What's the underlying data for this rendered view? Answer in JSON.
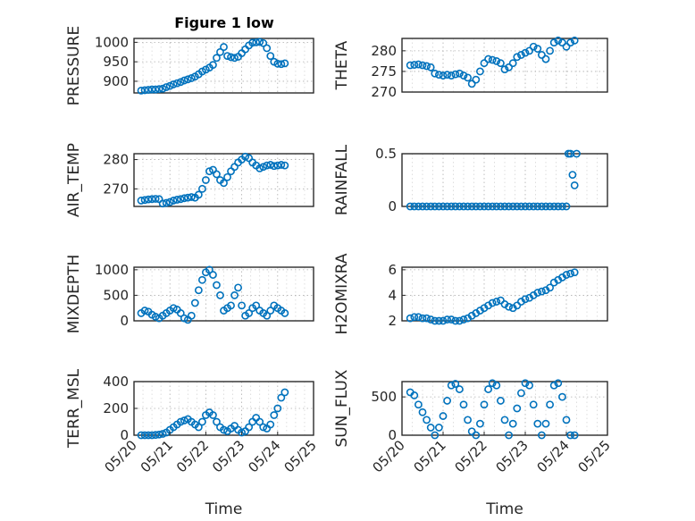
{
  "figure": {
    "title": "Figure 1 low"
  },
  "colors": {
    "marker": "#0072BD",
    "axes": "#262626"
  },
  "chart_data": [
    {
      "type": "scatter",
      "id": "pressure",
      "ylabel": "PRESSURE",
      "title": "Figure 1 low",
      "xlim": [
        0,
        5
      ],
      "ylim": [
        870,
        1010
      ],
      "yticks": [
        900,
        950,
        1000
      ],
      "x": [
        0.2,
        0.3,
        0.4,
        0.5,
        0.6,
        0.7,
        0.8,
        0.9,
        1.0,
        1.1,
        1.2,
        1.3,
        1.4,
        1.5,
        1.6,
        1.7,
        1.8,
        1.9,
        2.0,
        2.1,
        2.2,
        2.3,
        2.4,
        2.5,
        2.6,
        2.7,
        2.8,
        2.9,
        3.0,
        3.1,
        3.2,
        3.3,
        3.4,
        3.5,
        3.6,
        3.7,
        3.8,
        3.9,
        4.0,
        4.1,
        4.2
      ],
      "y": [
        876,
        877,
        878,
        879,
        879,
        880,
        881,
        885,
        888,
        892,
        895,
        898,
        902,
        905,
        908,
        912,
        918,
        925,
        930,
        935,
        942,
        960,
        975,
        988,
        965,
        962,
        960,
        963,
        972,
        982,
        992,
        999,
        1000,
        1001,
        998,
        985,
        965,
        950,
        945,
        944,
        946
      ]
    },
    {
      "type": "scatter",
      "id": "theta",
      "ylabel": "THETA",
      "xlim": [
        0,
        5
      ],
      "ylim": [
        270,
        283
      ],
      "yticks": [
        270,
        275,
        280
      ],
      "x": [
        0.2,
        0.3,
        0.4,
        0.5,
        0.6,
        0.7,
        0.8,
        0.9,
        1.0,
        1.1,
        1.2,
        1.3,
        1.4,
        1.5,
        1.6,
        1.7,
        1.8,
        1.9,
        2.0,
        2.1,
        2.2,
        2.3,
        2.4,
        2.5,
        2.6,
        2.7,
        2.8,
        2.9,
        3.0,
        3.1,
        3.2,
        3.3,
        3.4,
        3.5,
        3.6,
        3.7,
        3.8,
        3.9,
        4.0,
        4.1,
        4.2
      ],
      "y": [
        276.5,
        276.6,
        276.7,
        276.5,
        276.3,
        276.0,
        274.5,
        274.2,
        274.0,
        274.2,
        274.0,
        274.3,
        274.5,
        274.0,
        273.5,
        272.0,
        273.0,
        275.0,
        277.0,
        278.0,
        277.8,
        277.5,
        277.0,
        275.5,
        276.0,
        277.0,
        278.5,
        279.0,
        279.5,
        280.0,
        281.0,
        280.5,
        279.0,
        278.0,
        280.0,
        282.0,
        282.5,
        282.0,
        281.0,
        282.0,
        282.5
      ]
    },
    {
      "type": "scatter",
      "id": "air_temp",
      "ylabel": "AIR_TEMP",
      "xlim": [
        0,
        5
      ],
      "ylim": [
        264,
        282
      ],
      "yticks": [
        270,
        280
      ],
      "x": [
        0.2,
        0.3,
        0.4,
        0.5,
        0.6,
        0.7,
        0.8,
        0.9,
        1.0,
        1.1,
        1.2,
        1.3,
        1.4,
        1.5,
        1.6,
        1.7,
        1.8,
        1.9,
        2.0,
        2.1,
        2.2,
        2.3,
        2.4,
        2.5,
        2.6,
        2.7,
        2.8,
        2.9,
        3.0,
        3.1,
        3.2,
        3.3,
        3.4,
        3.5,
        3.6,
        3.7,
        3.8,
        3.9,
        4.0,
        4.1,
        4.2
      ],
      "y": [
        266.0,
        266.2,
        266.4,
        266.5,
        266.6,
        266.5,
        265.0,
        265.2,
        265.5,
        266.0,
        266.3,
        266.5,
        266.8,
        267.0,
        267.2,
        267.0,
        268.0,
        270.0,
        273.0,
        276.0,
        276.5,
        275.0,
        273.0,
        272.0,
        274.0,
        276.0,
        277.5,
        279.0,
        280.0,
        281.0,
        280.5,
        279.0,
        278.0,
        277.0,
        277.5,
        278.0,
        278.2,
        277.8,
        278.0,
        278.2,
        278.0
      ]
    },
    {
      "type": "scatter",
      "id": "rainfall",
      "ylabel": "RAINFALL",
      "xlim": [
        0,
        5
      ],
      "ylim": [
        0,
        0.5
      ],
      "yticks": [
        0,
        0.5
      ],
      "x": [
        0.2,
        0.3,
        0.4,
        0.5,
        0.6,
        0.7,
        0.8,
        0.9,
        1.0,
        1.1,
        1.2,
        1.3,
        1.4,
        1.5,
        1.6,
        1.7,
        1.8,
        1.9,
        2.0,
        2.1,
        2.2,
        2.3,
        2.4,
        2.5,
        2.6,
        2.7,
        2.8,
        2.9,
        3.0,
        3.1,
        3.2,
        3.3,
        3.4,
        3.5,
        3.6,
        3.7,
        3.8,
        3.9,
        4.0,
        4.05,
        4.1,
        4.15,
        4.2,
        4.25
      ],
      "y": [
        0,
        0,
        0,
        0,
        0,
        0,
        0,
        0,
        0,
        0,
        0,
        0,
        0,
        0,
        0,
        0,
        0,
        0,
        0,
        0,
        0,
        0,
        0,
        0,
        0,
        0,
        0,
        0,
        0,
        0,
        0,
        0,
        0,
        0,
        0,
        0,
        0,
        0,
        0,
        0.5,
        0.5,
        0.3,
        0.2,
        0.5
      ]
    },
    {
      "type": "scatter",
      "id": "mixdepth",
      "ylabel": "MIXDEPTH",
      "xlim": [
        0,
        5
      ],
      "ylim": [
        0,
        1050
      ],
      "yticks": [
        0,
        500,
        1000
      ],
      "x": [
        0.2,
        0.3,
        0.4,
        0.5,
        0.6,
        0.7,
        0.8,
        0.9,
        1.0,
        1.1,
        1.2,
        1.3,
        1.4,
        1.5,
        1.6,
        1.7,
        1.8,
        1.9,
        2.0,
        2.1,
        2.2,
        2.3,
        2.4,
        2.5,
        2.6,
        2.7,
        2.8,
        2.9,
        3.0,
        3.1,
        3.2,
        3.3,
        3.4,
        3.5,
        3.6,
        3.7,
        3.8,
        3.9,
        4.0,
        4.1,
        4.2
      ],
      "y": [
        150,
        200,
        180,
        120,
        80,
        50,
        100,
        150,
        200,
        250,
        220,
        150,
        50,
        20,
        100,
        350,
        600,
        800,
        950,
        1000,
        900,
        700,
        500,
        200,
        250,
        300,
        500,
        650,
        300,
        100,
        150,
        250,
        300,
        200,
        150,
        100,
        200,
        300,
        250,
        200,
        150
      ]
    },
    {
      "type": "scatter",
      "id": "h2omixra",
      "ylabel": "H2OMIXRA",
      "xlim": [
        0,
        5
      ],
      "ylim": [
        2,
        6.2
      ],
      "yticks": [
        2,
        4,
        6
      ],
      "x": [
        0.2,
        0.3,
        0.4,
        0.5,
        0.6,
        0.7,
        0.8,
        0.9,
        1.0,
        1.1,
        1.2,
        1.3,
        1.4,
        1.5,
        1.6,
        1.7,
        1.8,
        1.9,
        2.0,
        2.1,
        2.2,
        2.3,
        2.4,
        2.5,
        2.6,
        2.7,
        2.8,
        2.9,
        3.0,
        3.1,
        3.2,
        3.3,
        3.4,
        3.5,
        3.6,
        3.7,
        3.8,
        3.9,
        4.0,
        4.1,
        4.2
      ],
      "y": [
        2.2,
        2.3,
        2.3,
        2.2,
        2.2,
        2.1,
        2.0,
        2.0,
        2.0,
        2.1,
        2.1,
        2.0,
        2.0,
        2.1,
        2.2,
        2.4,
        2.6,
        2.8,
        3.0,
        3.2,
        3.4,
        3.5,
        3.6,
        3.3,
        3.1,
        3.0,
        3.2,
        3.5,
        3.7,
        3.8,
        4.0,
        4.2,
        4.3,
        4.4,
        4.6,
        5.0,
        5.2,
        5.4,
        5.6,
        5.7,
        5.8
      ]
    },
    {
      "type": "scatter",
      "id": "terr_msl",
      "ylabel": "TERR_MSL",
      "xlim": [
        0,
        5
      ],
      "ylim": [
        0,
        400
      ],
      "yticks": [
        0,
        200,
        400
      ],
      "x": [
        0.2,
        0.3,
        0.4,
        0.5,
        0.6,
        0.7,
        0.8,
        0.9,
        1.0,
        1.1,
        1.2,
        1.3,
        1.4,
        1.5,
        1.6,
        1.7,
        1.8,
        1.9,
        2.0,
        2.1,
        2.2,
        2.3,
        2.4,
        2.5,
        2.6,
        2.7,
        2.8,
        2.9,
        3.0,
        3.1,
        3.2,
        3.3,
        3.4,
        3.5,
        3.6,
        3.7,
        3.8,
        3.9,
        4.0,
        4.1,
        4.2
      ],
      "y": [
        0,
        0,
        0,
        0,
        2,
        5,
        10,
        20,
        40,
        60,
        80,
        100,
        110,
        120,
        100,
        80,
        60,
        100,
        150,
        170,
        150,
        100,
        60,
        40,
        30,
        50,
        70,
        40,
        20,
        30,
        60,
        100,
        130,
        100,
        60,
        50,
        80,
        150,
        200,
        280,
        320
      ]
    },
    {
      "type": "scatter",
      "id": "sun_flux",
      "ylabel": "SUN_FLUX",
      "xlim": [
        0,
        5
      ],
      "ylim": [
        0,
        700
      ],
      "yticks": [
        0,
        500
      ],
      "x": [
        0.2,
        0.3,
        0.4,
        0.5,
        0.6,
        0.7,
        0.8,
        0.9,
        1.0,
        1.1,
        1.2,
        1.3,
        1.4,
        1.5,
        1.6,
        1.7,
        1.8,
        1.9,
        2.0,
        2.1,
        2.2,
        2.3,
        2.4,
        2.5,
        2.6,
        2.7,
        2.8,
        2.9,
        3.0,
        3.1,
        3.2,
        3.3,
        3.4,
        3.5,
        3.6,
        3.7,
        3.8,
        3.9,
        4.0,
        4.1,
        4.2
      ],
      "y": [
        560,
        520,
        400,
        300,
        200,
        100,
        0,
        100,
        250,
        450,
        650,
        670,
        600,
        400,
        200,
        50,
        0,
        150,
        400,
        600,
        680,
        650,
        450,
        200,
        0,
        150,
        350,
        550,
        680,
        650,
        400,
        150,
        0,
        150,
        400,
        650,
        680,
        500,
        200,
        0,
        0
      ]
    }
  ],
  "xaxis": {
    "ticks": [
      0,
      1,
      2,
      3,
      4,
      5
    ],
    "tick_labels": [
      "05/20",
      "05/21",
      "05/22",
      "05/23",
      "05/24",
      "05/25"
    ],
    "label": "Time"
  }
}
